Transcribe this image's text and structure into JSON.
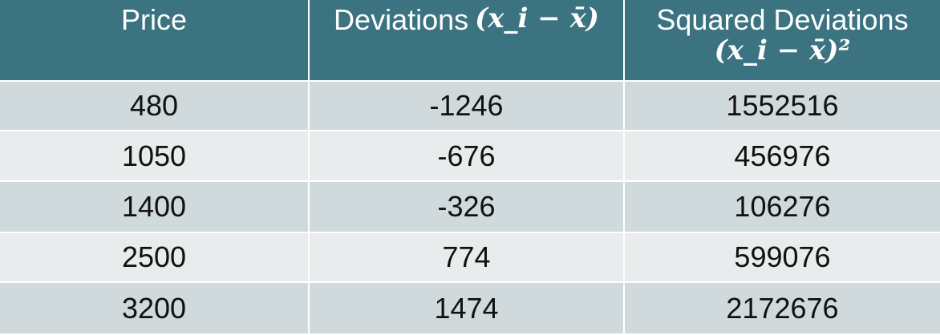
{
  "table": {
    "headers": {
      "price": "Price",
      "deviations": "Deviations",
      "deviations_formula": "(x_i − x̄)",
      "squared": "Squared Deviations",
      "squared_formula": "(x_i − x̄)²"
    },
    "rows": [
      {
        "price": "480",
        "deviation": "-1246",
        "squared": "1552516"
      },
      {
        "price": "1050",
        "deviation": "-676",
        "squared": "456976"
      },
      {
        "price": "1400",
        "deviation": "-326",
        "squared": "106276"
      },
      {
        "price": "2500",
        "deviation": "774",
        "squared": "599076"
      },
      {
        "price": "3200",
        "deviation": "1474",
        "squared": "2172676"
      }
    ]
  }
}
